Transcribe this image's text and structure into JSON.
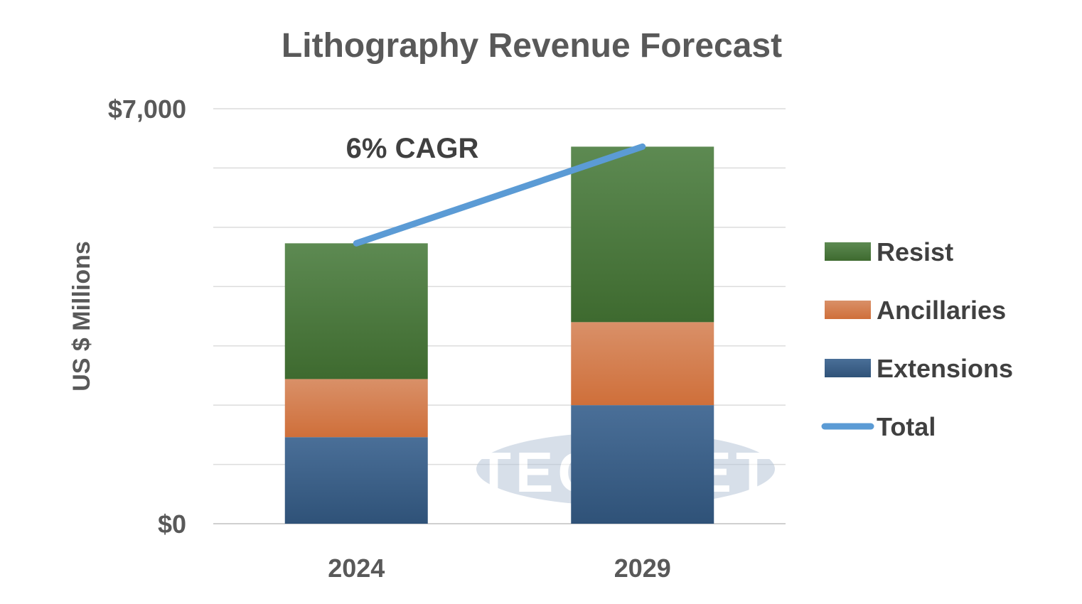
{
  "chart_data": {
    "type": "bar",
    "stacked": true,
    "title": "Lithography Revenue Forecast",
    "ylabel": "US $ Millions",
    "xlabel": "",
    "categories": [
      "2024",
      "2029"
    ],
    "ylim": [
      0,
      7000
    ],
    "y_tick_labels": [
      "$0",
      "$7,000"
    ],
    "gridlines": true,
    "series": [
      {
        "name": "Extensions",
        "values": [
          1460,
          2000
        ],
        "color": "#355c87"
      },
      {
        "name": "Ancillaries",
        "values": [
          980,
          1400
        ],
        "color": "#d97b46"
      },
      {
        "name": "Resist",
        "values": [
          2290,
          2960
        ],
        "color": "#4a7a3d"
      }
    ],
    "line_series": {
      "name": "Total",
      "values": [
        4730,
        6360
      ],
      "color": "#5b9bd5"
    },
    "annotation": "6% CAGR",
    "legend_position": "right",
    "watermark": "TECHCET"
  }
}
